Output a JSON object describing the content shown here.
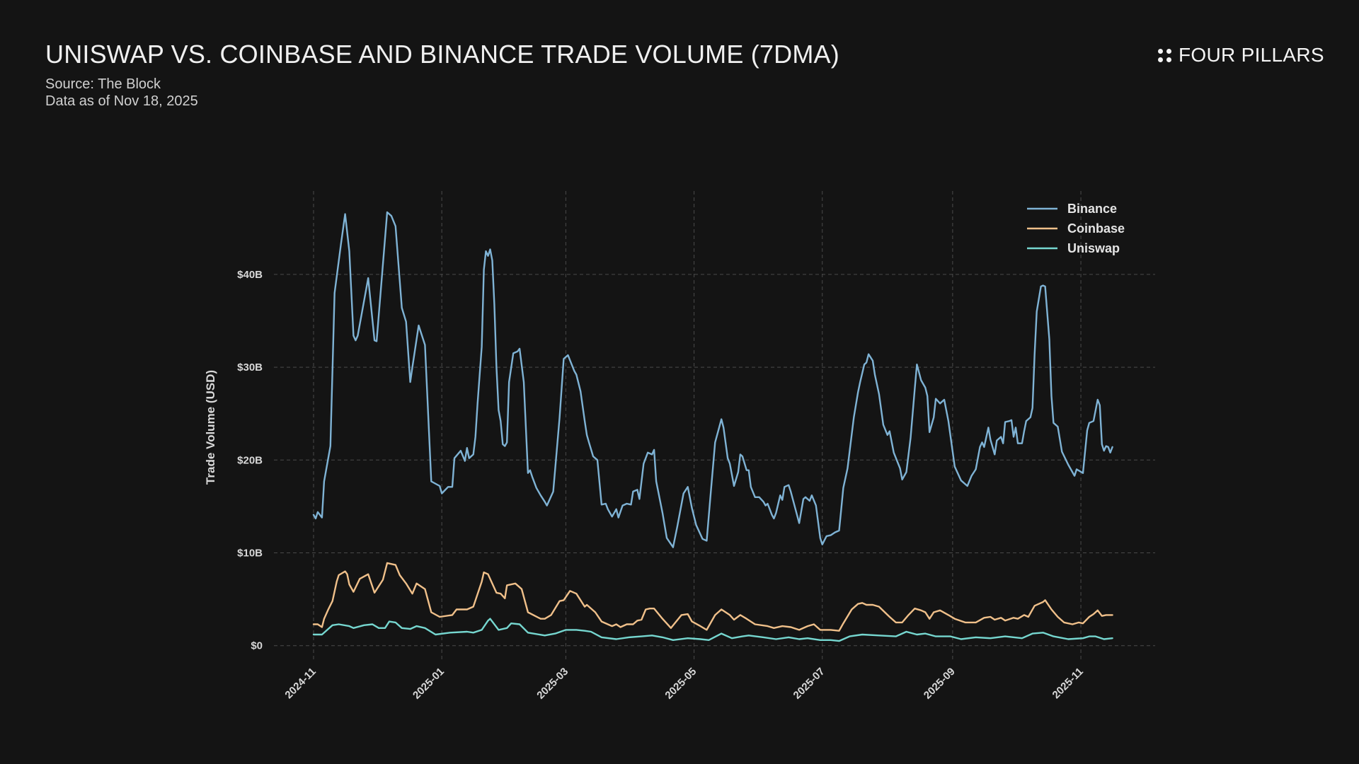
{
  "header": {
    "title": "UNISWAP VS. COINBASE AND BINANCE TRADE VOLUME (7DMA)",
    "source": "Source: The Block",
    "data_as_of": "Data as of Nov 18, 2025",
    "brand": "FOUR PILLARS",
    "brand_icon": "four-dots-icon"
  },
  "chart_data": {
    "type": "line",
    "title": "UNISWAP VS. COINBASE AND BINANCE TRADE VOLUME (7DMA)",
    "xlabel": "",
    "ylabel": "Trade Volume (USD)",
    "x_start_date": "2024-11-01",
    "x_unit": "days since x_start_date",
    "xlim": [
      -12,
      395
    ],
    "ylim": [
      0,
      48
    ],
    "y_unit": "USD billions",
    "grid": true,
    "legend_position": "top-right",
    "x_ticks": [
      {
        "label": "2024-11",
        "day": 0
      },
      {
        "label": "2025-01",
        "day": 61
      },
      {
        "label": "2025-03",
        "day": 120
      },
      {
        "label": "2025-05",
        "day": 181
      },
      {
        "label": "2025-07",
        "day": 242
      },
      {
        "label": "2025-09",
        "day": 304
      },
      {
        "label": "2025-11",
        "day": 365
      }
    ],
    "y_ticks": [
      {
        "label": "$0",
        "value": 0
      },
      {
        "label": "$10B",
        "value": 10
      },
      {
        "label": "$20B",
        "value": 20
      },
      {
        "label": "$30B",
        "value": 30
      },
      {
        "label": "$40B",
        "value": 40
      }
    ],
    "series": [
      {
        "name": "Binance",
        "color": "#7fb3d5",
        "x": [
          0,
          1,
          2,
          4,
          5,
          8,
          10,
          13,
          15,
          17,
          19,
          20,
          21,
          26,
          29,
          30,
          35,
          37,
          39,
          42,
          44,
          46,
          47,
          50,
          53,
          56,
          60,
          61,
          64,
          66,
          67,
          70,
          72,
          73,
          74,
          76,
          77,
          78,
          80,
          81,
          82,
          83,
          84,
          85,
          86,
          87,
          88,
          89,
          90,
          91,
          92,
          93,
          95,
          97,
          98,
          100,
          102,
          103,
          104,
          106,
          108,
          110,
          111,
          114,
          117,
          119,
          121,
          124,
          125,
          127,
          129,
          130,
          131,
          133,
          135,
          137,
          139,
          140,
          142,
          144,
          145,
          147,
          149,
          151,
          152,
          154,
          155,
          157,
          159,
          161,
          162,
          163,
          166,
          168,
          171,
          173,
          176,
          178,
          180,
          182,
          185,
          187,
          189,
          191,
          194,
          195,
          197,
          198,
          200,
          202,
          203,
          204,
          206,
          207,
          208,
          210,
          212,
          214,
          215,
          216,
          218,
          219,
          220,
          222,
          223,
          224,
          226,
          227,
          231,
          233,
          234,
          236,
          237,
          239,
          241,
          242,
          244,
          246,
          248,
          250,
          251,
          252,
          254,
          257,
          259,
          260,
          262,
          263,
          264,
          266,
          267,
          269,
          271,
          273,
          274,
          276,
          279,
          280,
          282,
          284,
          286,
          287,
          289,
          291,
          292,
          293,
          295,
          296,
          298,
          300,
          302,
          304,
          305,
          308,
          311,
          313,
          315,
          317,
          318,
          319,
          321,
          322,
          324,
          325,
          327,
          328,
          329,
          331,
          332,
          333,
          334,
          335,
          337,
          338,
          339,
          341,
          342,
          343,
          344,
          346,
          347,
          348,
          350,
          351,
          352,
          354,
          356,
          359,
          362,
          363,
          366,
          368,
          369,
          371,
          373,
          374,
          375,
          376,
          377,
          378,
          379,
          380
        ],
        "values": [
          14.1,
          13.7,
          14.4,
          13.8,
          17.7,
          21.5,
          38.0,
          43.2,
          46.5,
          42.5,
          33.4,
          32.9,
          33.4,
          39.6,
          32.9,
          32.8,
          46.7,
          46.3,
          45.2,
          36.4,
          34.9,
          28.4,
          30.0,
          34.5,
          32.4,
          17.7,
          17.2,
          16.4,
          17.1,
          17.1,
          20.2,
          21.0,
          19.9,
          21.3,
          20.2,
          20.6,
          22.5,
          26.1,
          32.2,
          40.5,
          42.5,
          42.0,
          42.7,
          41.5,
          36.8,
          30.0,
          25.4,
          24.2,
          21.7,
          21.5,
          21.9,
          28.4,
          31.5,
          31.7,
          32.0,
          28.4,
          18.6,
          18.9,
          18.2,
          17.0,
          16.2,
          15.5,
          15.1,
          16.6,
          24.5,
          30.9,
          31.3,
          29.6,
          29.2,
          27.4,
          24.2,
          22.7,
          21.9,
          20.4,
          20.0,
          15.2,
          15.3,
          14.7,
          13.9,
          14.7,
          13.8,
          15.1,
          15.3,
          15.2,
          16.6,
          16.8,
          15.8,
          19.6,
          20.8,
          20.6,
          21.1,
          17.7,
          14.3,
          11.6,
          10.6,
          12.8,
          16.4,
          17.1,
          14.8,
          13.0,
          11.5,
          11.3,
          16.6,
          21.9,
          24.4,
          23.5,
          20.2,
          19.6,
          17.2,
          18.7,
          20.6,
          20.4,
          18.9,
          18.9,
          17.1,
          16.0,
          16.0,
          15.5,
          15.1,
          15.3,
          14.1,
          13.7,
          14.3,
          16.2,
          15.7,
          17.1,
          17.3,
          16.6,
          13.2,
          15.8,
          16.0,
          15.6,
          16.2,
          15.1,
          11.6,
          10.9,
          11.8,
          11.9,
          12.2,
          12.4,
          14.7,
          17.0,
          19.1,
          24.6,
          27.3,
          28.4,
          30.3,
          30.5,
          31.4,
          30.7,
          29.2,
          27.1,
          23.8,
          22.7,
          23.1,
          20.8,
          19.1,
          17.9,
          18.7,
          22.4,
          27.7,
          30.3,
          28.6,
          27.8,
          26.9,
          23.0,
          24.6,
          26.6,
          26.1,
          26.5,
          24.2,
          20.9,
          19.3,
          17.8,
          17.2,
          18.3,
          19.0,
          21.4,
          21.9,
          21.4,
          23.5,
          22.2,
          20.6,
          22.1,
          22.5,
          21.8,
          24.1,
          24.2,
          24.3,
          22.5,
          23.5,
          21.8,
          21.8,
          23.1,
          24.2,
          24.6,
          25.6,
          31.4,
          36.0,
          38.7,
          38.8,
          38.7,
          33.0,
          26.9,
          24.0,
          23.6,
          20.9,
          19.5,
          18.3,
          19.0,
          18.6,
          23.2,
          24.0,
          24.2,
          26.5,
          25.9,
          21.7,
          21.0,
          21.5,
          21.4,
          20.8,
          21.4
        ]
      },
      {
        "name": "Coinbase",
        "color": "#f0c08a",
        "x": [
          0,
          2,
          4,
          5,
          7,
          9,
          11,
          12,
          15,
          16,
          17,
          19,
          22,
          26,
          29,
          33,
          35,
          39,
          41,
          44,
          47,
          49,
          53,
          56,
          60,
          66,
          68,
          73,
          76,
          80,
          81,
          83,
          87,
          89,
          91,
          92,
          96,
          99,
          102,
          108,
          110,
          113,
          117,
          119,
          122,
          125,
          129,
          130,
          134,
          137,
          142,
          144,
          146,
          149,
          152,
          154,
          156,
          158,
          160,
          162,
          166,
          170,
          175,
          178,
          180,
          184,
          187,
          191,
          194,
          198,
          200,
          203,
          206,
          210,
          216,
          219,
          223,
          227,
          231,
          235,
          238,
          241,
          246,
          250,
          252,
          256,
          259,
          261,
          263,
          266,
          269,
          274,
          277,
          280,
          283,
          286,
          289,
          291,
          293,
          295,
          298,
          302,
          305,
          310,
          315,
          319,
          322,
          324,
          327,
          329,
          333,
          335,
          338,
          340,
          343,
          347,
          348,
          351,
          354,
          357,
          361,
          364,
          366,
          369,
          371,
          373,
          375,
          377,
          380
        ],
        "values": [
          2.3,
          2.3,
          2.0,
          2.9,
          3.9,
          4.8,
          6.9,
          7.6,
          8.0,
          7.7,
          6.6,
          5.8,
          7.2,
          7.7,
          5.7,
          7.1,
          8.9,
          8.7,
          7.6,
          6.7,
          5.6,
          6.7,
          6.1,
          3.6,
          3.1,
          3.3,
          3.9,
          3.9,
          4.2,
          6.9,
          7.9,
          7.7,
          5.7,
          5.6,
          5.1,
          6.5,
          6.7,
          6.1,
          3.6,
          2.9,
          2.9,
          3.3,
          4.8,
          4.9,
          5.9,
          5.6,
          4.2,
          4.4,
          3.6,
          2.6,
          2.1,
          2.3,
          2.0,
          2.3,
          2.3,
          2.7,
          2.8,
          3.9,
          4.0,
          4.0,
          2.9,
          1.9,
          3.3,
          3.4,
          2.6,
          2.1,
          1.7,
          3.3,
          3.9,
          3.3,
          2.8,
          3.3,
          2.9,
          2.3,
          2.1,
          1.9,
          2.1,
          2.0,
          1.7,
          2.1,
          2.3,
          1.7,
          1.7,
          1.6,
          2.4,
          3.9,
          4.5,
          4.6,
          4.4,
          4.4,
          4.2,
          3.1,
          2.5,
          2.5,
          3.3,
          4.0,
          3.8,
          3.6,
          2.9,
          3.6,
          3.8,
          3.3,
          2.9,
          2.5,
          2.5,
          3.0,
          3.1,
          2.8,
          3.0,
          2.7,
          3.0,
          2.9,
          3.3,
          3.1,
          4.3,
          4.7,
          4.9,
          3.9,
          3.1,
          2.5,
          2.3,
          2.5,
          2.4,
          3.1,
          3.4,
          3.8,
          3.2,
          3.3,
          3.3
        ]
      },
      {
        "name": "Uniswap",
        "color": "#76d7d0",
        "x": [
          0,
          4,
          9,
          12,
          17,
          19,
          24,
          28,
          31,
          34,
          36,
          39,
          42,
          46,
          49,
          53,
          58,
          65,
          73,
          76,
          80,
          83,
          84,
          88,
          92,
          94,
          98,
          102,
          110,
          115,
          120,
          125,
          129,
          132,
          137,
          144,
          150,
          156,
          161,
          166,
          171,
          178,
          184,
          188,
          194,
          199,
          204,
          207,
          214,
          220,
          226,
          231,
          235,
          241,
          246,
          250,
          255,
          261,
          269,
          277,
          282,
          287,
          291,
          296,
          303,
          308,
          315,
          322,
          329,
          337,
          342,
          347,
          352,
          359,
          366,
          369,
          372,
          376,
          380
        ],
        "values": [
          1.2,
          1.2,
          2.2,
          2.3,
          2.1,
          1.9,
          2.2,
          2.3,
          1.9,
          1.9,
          2.6,
          2.5,
          1.9,
          1.8,
          2.1,
          1.9,
          1.2,
          1.4,
          1.5,
          1.4,
          1.7,
          2.7,
          2.9,
          1.7,
          1.9,
          2.4,
          2.3,
          1.4,
          1.1,
          1.3,
          1.7,
          1.7,
          1.6,
          1.5,
          0.9,
          0.7,
          0.9,
          1.0,
          1.1,
          0.9,
          0.6,
          0.8,
          0.7,
          0.6,
          1.3,
          0.8,
          1.0,
          1.1,
          0.9,
          0.7,
          0.9,
          0.7,
          0.8,
          0.6,
          0.6,
          0.5,
          1.0,
          1.2,
          1.1,
          1.0,
          1.5,
          1.2,
          1.3,
          1.0,
          1.0,
          0.7,
          0.9,
          0.8,
          1.0,
          0.8,
          1.3,
          1.4,
          1.0,
          0.7,
          0.8,
          1.0,
          1.0,
          0.7,
          0.8
        ]
      }
    ]
  }
}
